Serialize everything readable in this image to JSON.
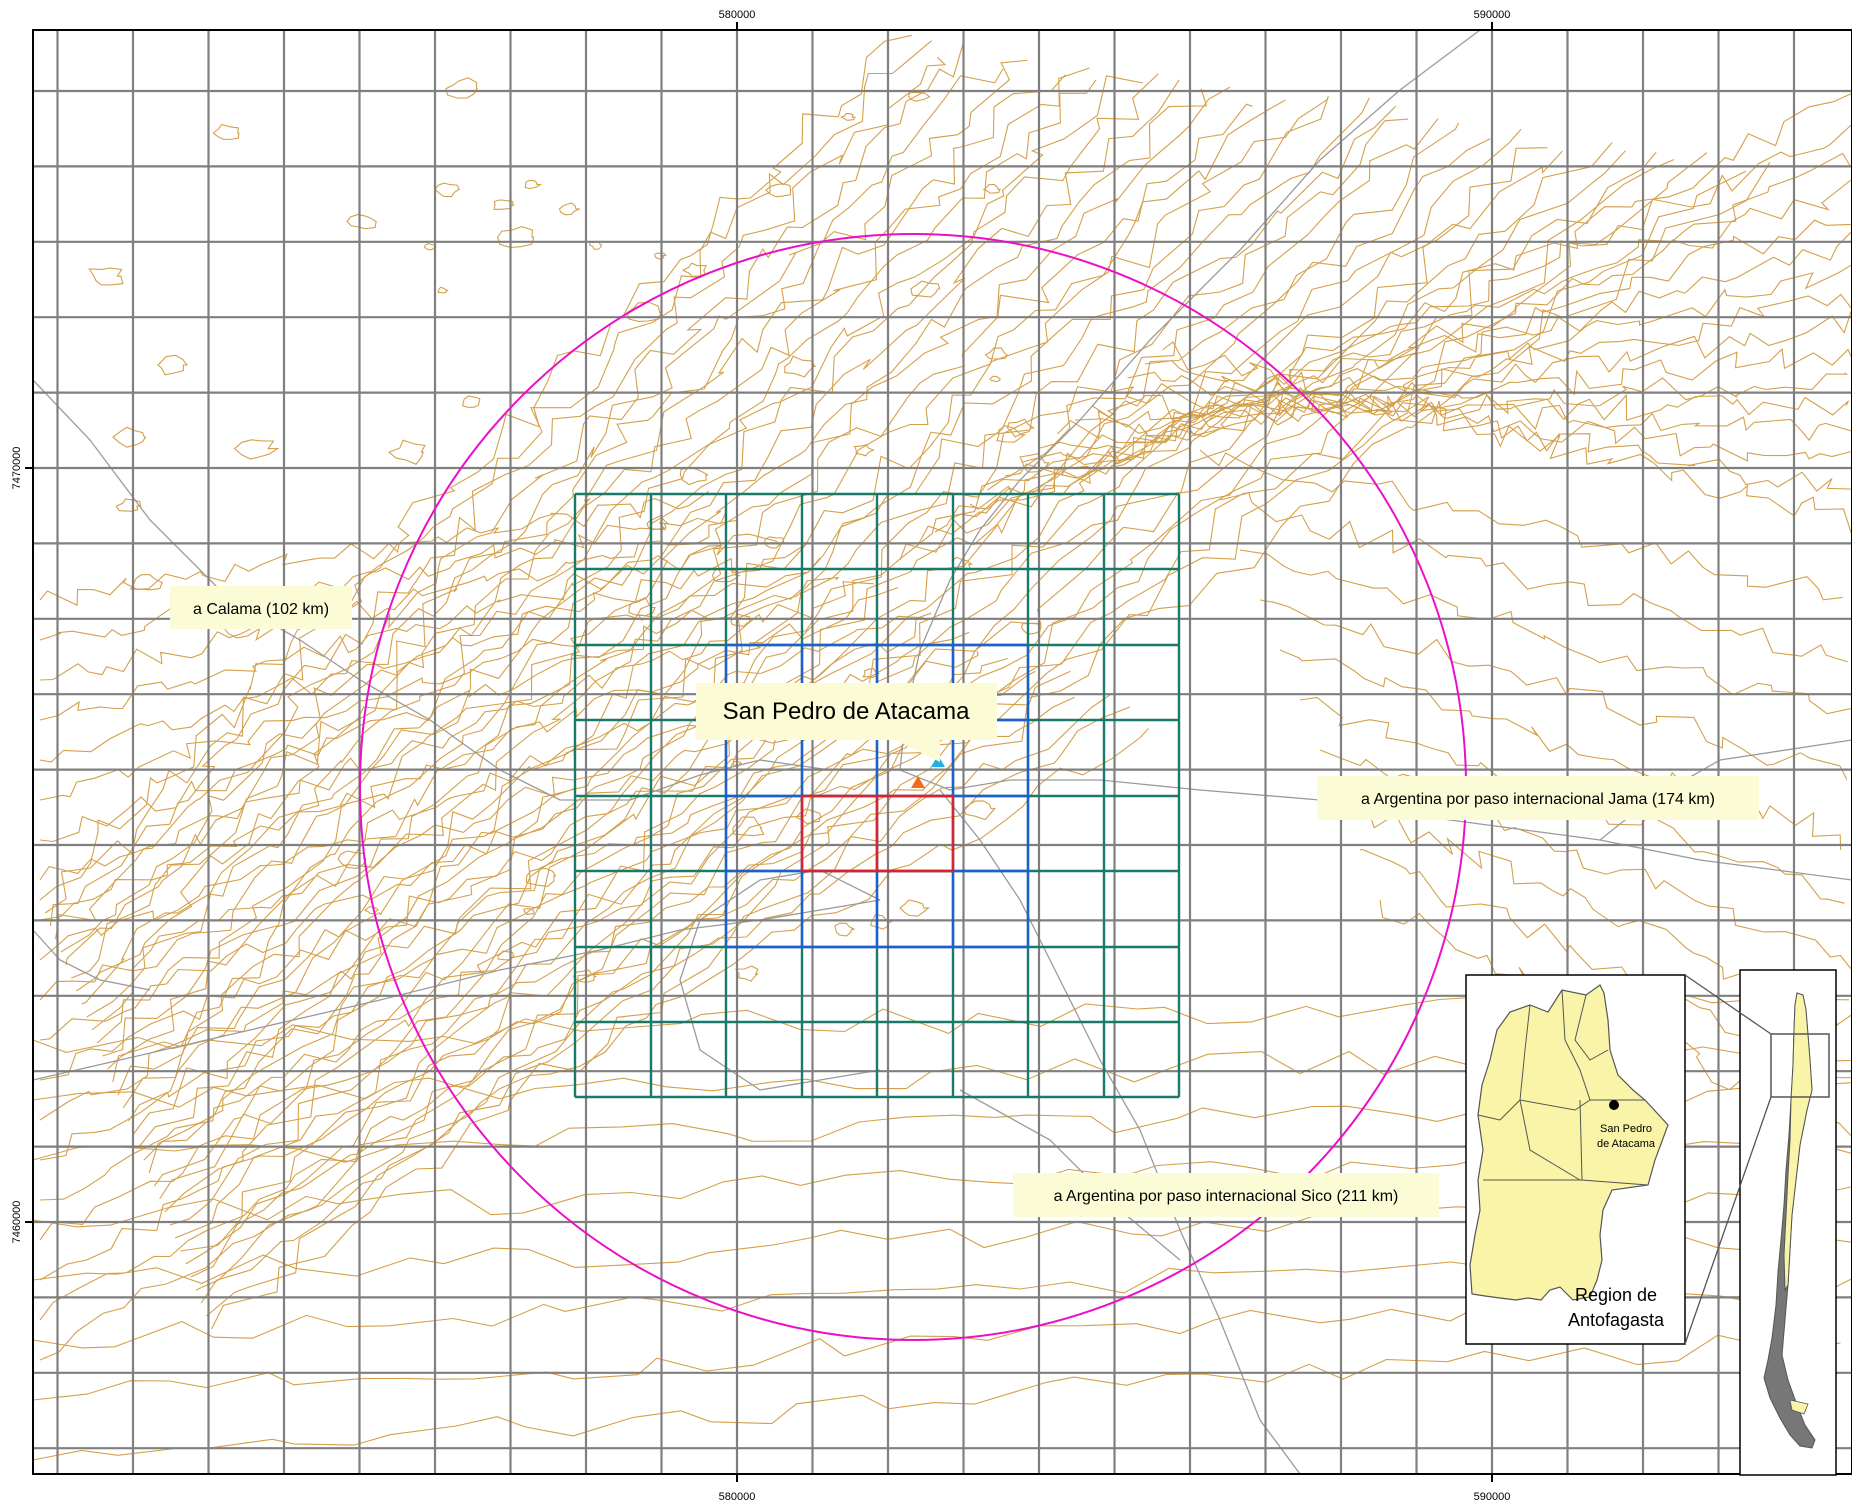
{
  "map": {
    "colors": {
      "grid": "#7f7f7f",
      "contour": "#d4a04a",
      "road": "#9a9a9a",
      "circle": "#ec0fc8",
      "zone_outer": "#1a7a6a",
      "zone_mid": "#1e5fd0",
      "zone_inner": "#e0202a",
      "label_bg": "#fbfbd6",
      "marker_orange": "#f26a1b",
      "marker_cyan": "#22b0e6",
      "region_fill": "#f9f4a8"
    },
    "axis": {
      "x_top_left": "580000",
      "x_top_right": "590000",
      "x_bottom_left": "580000",
      "x_bottom_right": "590000",
      "y_upper": "7470000",
      "y_lower": "7460000"
    },
    "labels": {
      "calama": "a Calama (102 km)",
      "town": "San Pedro de Atacama",
      "jama": "a Argentina por paso internacional Jama (174 km)",
      "sico": "a Argentina por paso internacional Sico (211 km)"
    },
    "inset": {
      "region_title_line1": "Region de",
      "region_title_line2": "Antofagasta",
      "town_line1": "San Pedro",
      "town_line2": "de Atacama"
    },
    "markers": [
      {
        "name": "orange-triangle-marker",
        "color_key": "marker_orange"
      },
      {
        "name": "cyan-triangle-marker",
        "color_key": "marker_cyan"
      }
    ]
  }
}
